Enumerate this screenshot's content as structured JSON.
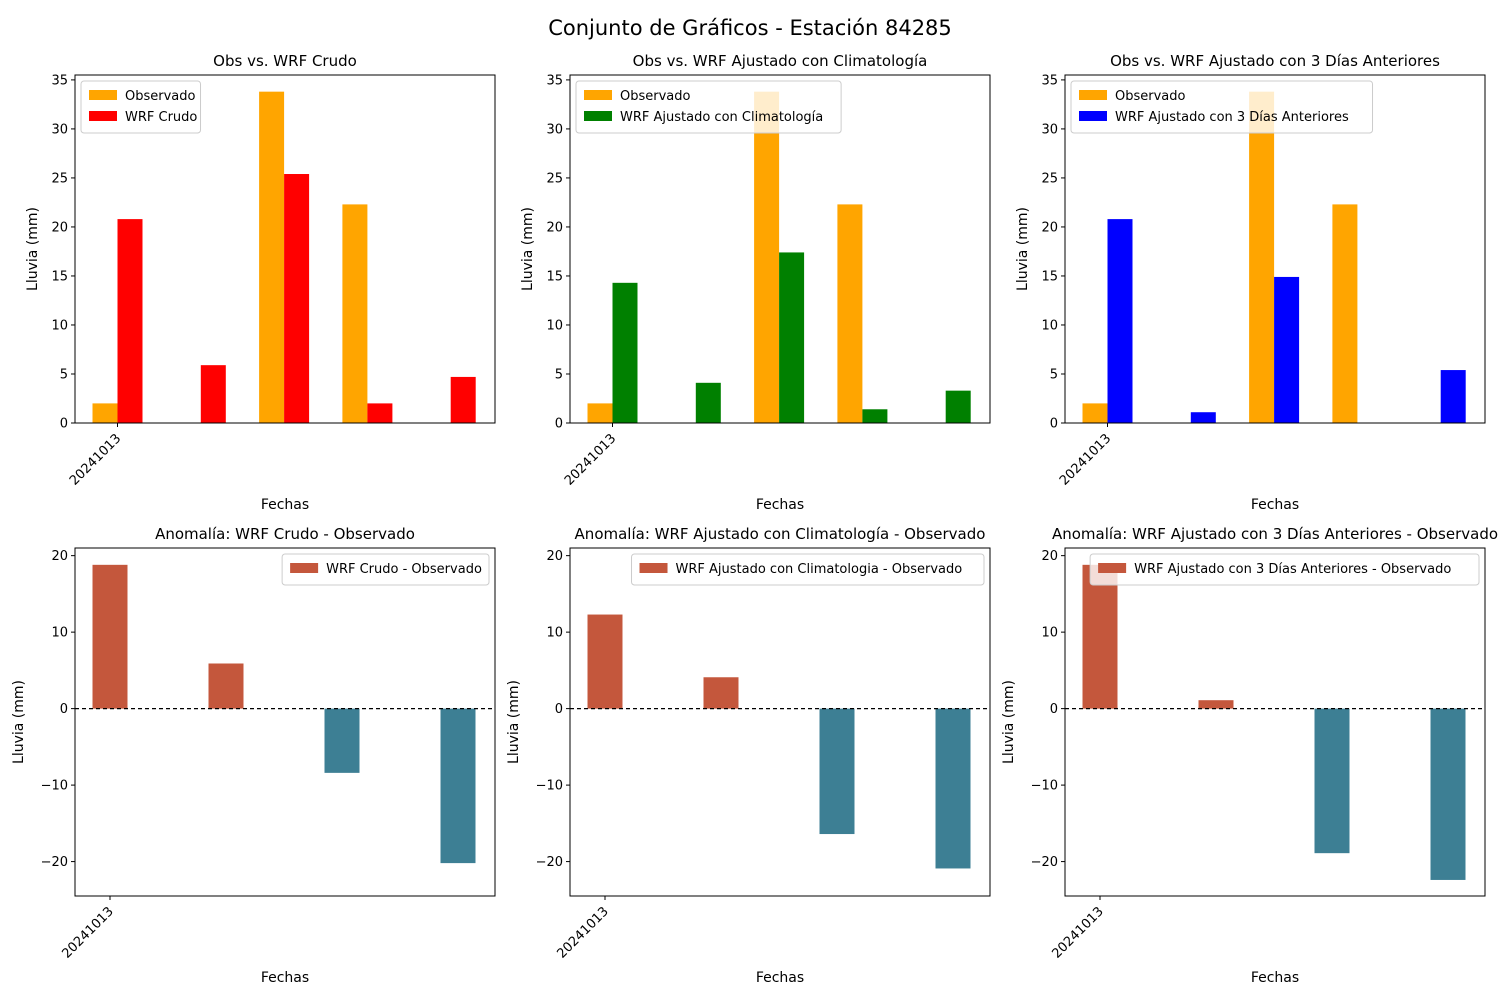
{
  "figure_title": "Conjunto de Gráficos - Estación 84285",
  "chart_data": [
    {
      "type": "bar",
      "title": "Obs vs. WRF Crudo",
      "xlabel": "Fechas",
      "ylabel": "Lluvia (mm)",
      "x_tick_labels": [
        "20241013"
      ],
      "ylim": [
        0,
        35.5
      ],
      "yticks": [
        0,
        5,
        10,
        15,
        20,
        25,
        30,
        35
      ],
      "legend_position": "upper left",
      "series": [
        {
          "name": "Observado",
          "color": "#ffa500",
          "values": [
            2.0,
            0,
            33.8,
            22.3,
            0
          ]
        },
        {
          "name": "WRF Crudo",
          "color": "#ff0000",
          "values": [
            20.8,
            5.9,
            25.4,
            2.0,
            4.7
          ]
        }
      ]
    },
    {
      "type": "bar",
      "title": "Obs vs. WRF Ajustado con Climatología",
      "xlabel": "Fechas",
      "ylabel": "Lluvia (mm)",
      "x_tick_labels": [
        "20241013"
      ],
      "ylim": [
        0,
        35.5
      ],
      "yticks": [
        0,
        5,
        10,
        15,
        20,
        25,
        30,
        35
      ],
      "legend_position": "upper left",
      "series": [
        {
          "name": "Observado",
          "color": "#ffa500",
          "values": [
            2.0,
            0,
            33.8,
            22.3,
            0
          ]
        },
        {
          "name": "WRF Ajustado con Climatología",
          "color": "#008000",
          "values": [
            14.3,
            4.1,
            17.4,
            1.4,
            3.3
          ]
        }
      ]
    },
    {
      "type": "bar",
      "title": "Obs vs. WRF Ajustado con 3 Días Anteriores",
      "xlabel": "Fechas",
      "ylabel": "Lluvia (mm)",
      "x_tick_labels": [
        "20241013"
      ],
      "ylim": [
        0,
        35.5
      ],
      "yticks": [
        0,
        5,
        10,
        15,
        20,
        25,
        30,
        35
      ],
      "legend_position": "upper left",
      "series": [
        {
          "name": "Observado",
          "color": "#ffa500",
          "values": [
            2.0,
            0,
            33.8,
            22.3,
            0
          ]
        },
        {
          "name": "WRF Ajustado con 3 Días Anteriores",
          "color": "#0000ff",
          "values": [
            20.8,
            1.1,
            14.9,
            0,
            5.4
          ]
        }
      ]
    },
    {
      "type": "bar",
      "title": "Anomalía: WRF Crudo - Observado",
      "xlabel": "Fechas",
      "ylabel": "Lluvia (mm)",
      "x_tick_labels": [
        "20241013"
      ],
      "ylim": [
        -24.5,
        21
      ],
      "yticks": [
        -20,
        -10,
        0,
        10,
        20
      ],
      "zero_line": true,
      "legend_position": "upper right",
      "positive_color": "#c4573c",
      "negative_color": "#3d7f94",
      "series": [
        {
          "name": "WRF Crudo - Observado",
          "color": "#c4573c",
          "values": [
            18.8,
            5.9,
            -8.4,
            -20.2
          ]
        }
      ]
    },
    {
      "type": "bar",
      "title": "Anomalía: WRF Ajustado con Climatología - Observado",
      "xlabel": "Fechas",
      "ylabel": "Lluvia (mm)",
      "x_tick_labels": [
        "20241013"
      ],
      "ylim": [
        -24.5,
        21
      ],
      "yticks": [
        -20,
        -10,
        0,
        10,
        20
      ],
      "zero_line": true,
      "legend_position": "upper right",
      "positive_color": "#c4573c",
      "negative_color": "#3d7f94",
      "series": [
        {
          "name": "WRF Ajustado con Climatologia - Observado",
          "color": "#c4573c",
          "values": [
            12.3,
            4.1,
            -16.4,
            -20.9
          ]
        }
      ]
    },
    {
      "type": "bar",
      "title": "Anomalía: WRF Ajustado con 3 Días Anteriores - Observado",
      "xlabel": "Fechas",
      "ylabel": "Lluvia (mm)",
      "x_tick_labels": [
        "20241013"
      ],
      "ylim": [
        -24.5,
        21
      ],
      "yticks": [
        -20,
        -10,
        0,
        10,
        20
      ],
      "zero_line": true,
      "legend_position": "upper right",
      "positive_color": "#c4573c",
      "negative_color": "#3d7f94",
      "series": [
        {
          "name": "WRF Ajustado con 3 Días Anteriores - Observado",
          "color": "#c4573c",
          "values": [
            18.8,
            1.1,
            -18.9,
            -22.4
          ]
        }
      ]
    }
  ]
}
